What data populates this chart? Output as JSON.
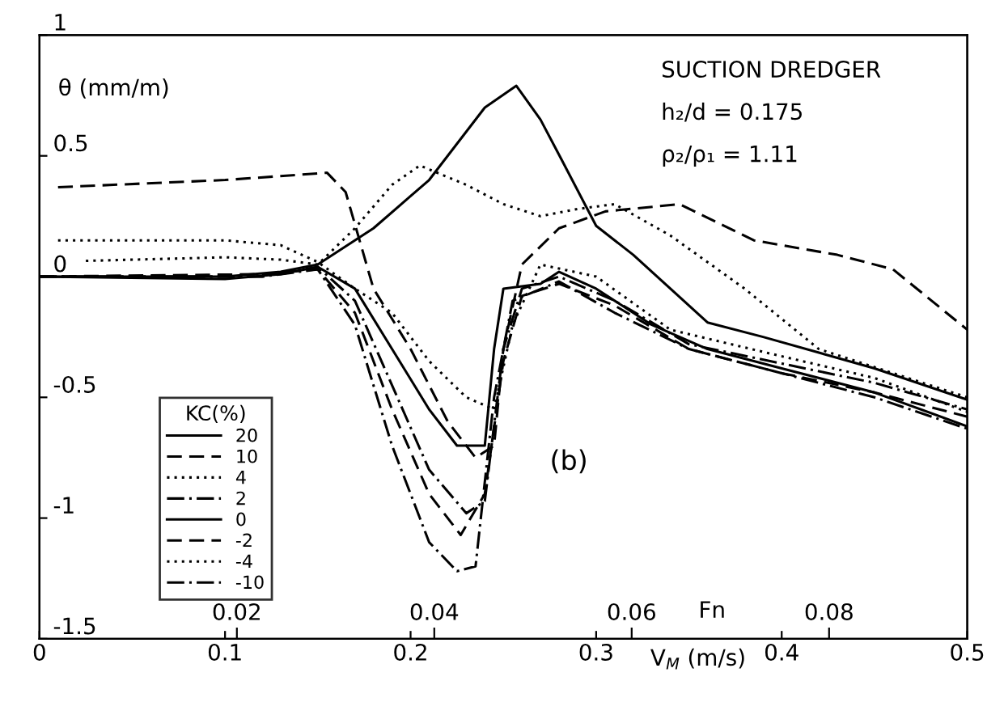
{
  "chart_data": {
    "type": "line",
    "ylabel": "θ (mm/m)",
    "xlabel": "V$_{M}$ (m/s)",
    "x2label": "Fn",
    "legend_title": "KC(%)",
    "legend": "bottom left",
    "grid": false,
    "annotations": [
      "SUCTION DREDGER",
      "h₂/d = 0.175",
      "ρ₂/ρ₁ = 1.11",
      "(b)"
    ],
    "xlim": [
      0,
      0.5
    ],
    "xticks": [
      0,
      0.1,
      0.2,
      0.3,
      0.4,
      0.5
    ],
    "x2lim": [
      0,
      0.094
    ],
    "x2ticks": [
      0.02,
      0.04,
      0.06,
      0.08
    ],
    "ylim": [
      -1.5,
      1
    ],
    "yticks": [
      -1.5,
      -1,
      -0.5,
      0,
      0.5,
      1
    ],
    "series": [
      {
        "name": "20",
        "color": "#000000",
        "line_style": "solid",
        "x": [
          0,
          0.1,
          0.13,
          0.15,
          0.18,
          0.21,
          0.24,
          0.257,
          0.27,
          0.281,
          0.3,
          0.32,
          0.34,
          0.36,
          0.39,
          0.45,
          0.5
        ],
        "values": [
          0,
          0,
          0.02,
          0.05,
          0.2,
          0.4,
          0.7,
          0.79,
          0.65,
          0.49,
          0.21,
          0.09,
          -0.05,
          -0.19,
          -0.25,
          -0.38,
          -0.51
        ]
      },
      {
        "name": "10",
        "color": "#000000",
        "line_style": "dashed",
        "x": [
          0.01,
          0.1,
          0.155,
          0.165,
          0.18,
          0.2,
          0.22,
          0.235,
          0.245,
          0.25,
          0.26,
          0.28,
          0.305,
          0.345,
          0.385,
          0.43,
          0.46,
          0.5
        ],
        "values": [
          0.37,
          0.4,
          0.43,
          0.35,
          -0.05,
          -0.3,
          -0.6,
          -0.75,
          -0.7,
          -0.3,
          0.05,
          0.2,
          0.27,
          0.3,
          0.15,
          0.09,
          0.03,
          -0.22
        ]
      },
      {
        "name": "4",
        "color": "#000000",
        "line_style": "dotted",
        "x": [
          0.025,
          0.1,
          0.13,
          0.15,
          0.17,
          0.19,
          0.205,
          0.23,
          0.25,
          0.27,
          0.29,
          0.31,
          0.34,
          0.38,
          0.42,
          0.46,
          0.5
        ],
        "values": [
          0.065,
          0.08,
          0.07,
          0.05,
          0.2,
          0.38,
          0.46,
          0.38,
          0.3,
          0.25,
          0.28,
          0.3,
          0.17,
          -0.05,
          -0.3,
          -0.4,
          -0.5
        ]
      },
      {
        "name": "2",
        "color": "#000000",
        "line_style": "dashdot",
        "x": [
          0,
          0.12,
          0.15,
          0.17,
          0.19,
          0.21,
          0.23,
          0.24,
          0.25,
          0.26,
          0.28,
          0.31,
          0.35,
          0.4,
          0.45,
          0.5
        ],
        "values": [
          0,
          0,
          0.04,
          -0.1,
          -0.45,
          -0.8,
          -0.98,
          -0.93,
          -0.3,
          -0.05,
          0,
          -0.1,
          -0.28,
          -0.36,
          -0.44,
          -0.55
        ]
      },
      {
        "name": "0",
        "color": "#000000",
        "line_style": "solid",
        "x": [
          0,
          0.1,
          0.13,
          0.15,
          0.17,
          0.19,
          0.21,
          0.225,
          0.24,
          0.245,
          0.25,
          0.27,
          0.28,
          0.3,
          0.33,
          0.36,
          0.4,
          0.45,
          0.5
        ],
        "values": [
          0,
          -0.01,
          0.01,
          0.04,
          -0.05,
          -0.3,
          -0.55,
          -0.7,
          -0.7,
          -0.3,
          -0.05,
          -0.03,
          0.02,
          -0.05,
          -0.2,
          -0.3,
          -0.38,
          -0.48,
          -0.62
        ]
      },
      {
        "name": "-2",
        "color": "#000000",
        "line_style": "dashed",
        "x": [
          0,
          0.12,
          0.15,
          0.17,
          0.19,
          0.21,
          0.227,
          0.24,
          0.25,
          0.26,
          0.28,
          0.31,
          0.35,
          0.4,
          0.45,
          0.5
        ],
        "values": [
          0,
          0.01,
          0.03,
          -0.15,
          -0.55,
          -0.9,
          -1.07,
          -0.9,
          -0.35,
          -0.08,
          -0.03,
          -0.12,
          -0.3,
          -0.4,
          -0.48,
          -0.58
        ]
      },
      {
        "name": "-4",
        "color": "#000000",
        "line_style": "dotted",
        "x": [
          0.01,
          0.1,
          0.13,
          0.15,
          0.17,
          0.19,
          0.21,
          0.23,
          0.245,
          0.255,
          0.27,
          0.3,
          0.34,
          0.4,
          0.45,
          0.5
        ],
        "values": [
          0.15,
          0.15,
          0.13,
          0.06,
          -0.05,
          -0.15,
          -0.35,
          -0.5,
          -0.55,
          -0.2,
          0.05,
          0,
          -0.22,
          -0.33,
          -0.42,
          -0.56
        ]
      },
      {
        "name": "-10",
        "color": "#000000",
        "line_style": "dashdot",
        "x": [
          0,
          0.12,
          0.15,
          0.17,
          0.19,
          0.21,
          0.225,
          0.235,
          0.245,
          0.255,
          0.28,
          0.31,
          0.35,
          0.4,
          0.45,
          0.5
        ],
        "values": [
          0,
          0,
          0.03,
          -0.2,
          -0.7,
          -1.1,
          -1.22,
          -1.2,
          -0.5,
          -0.1,
          -0.02,
          -0.15,
          -0.3,
          -0.4,
          -0.5,
          -0.63
        ]
      }
    ]
  }
}
